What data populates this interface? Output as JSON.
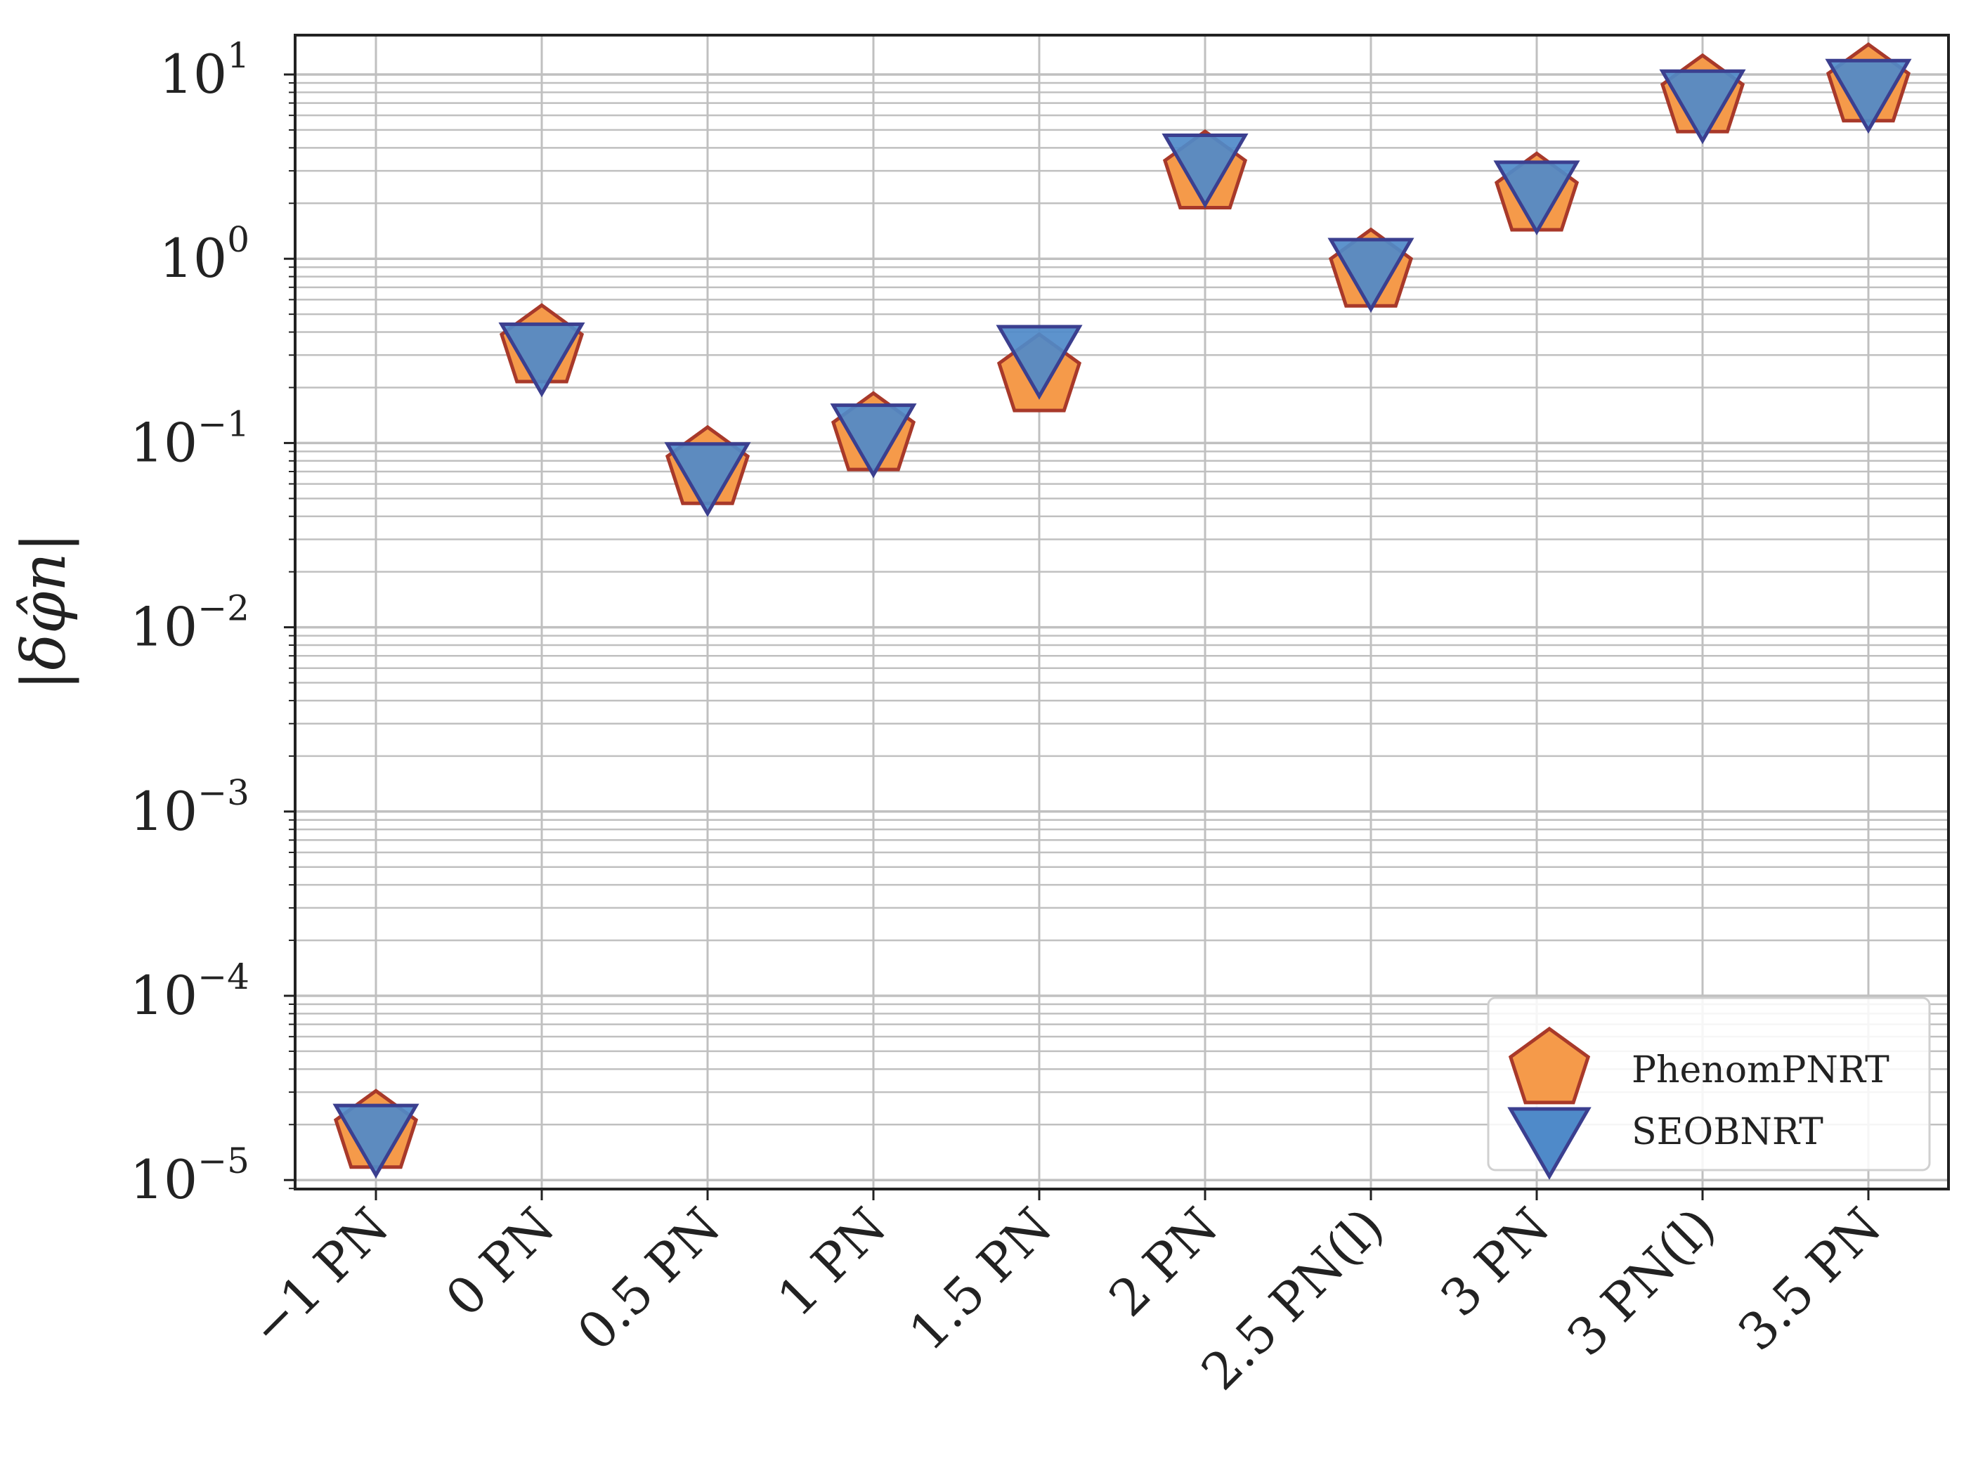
{
  "chart_data": {
    "type": "scatter",
    "categories": [
      "−1 PN",
      "0 PN",
      "0.5 PN",
      "1 PN",
      "1.5 PN",
      "2 PN",
      "2.5 PN(l)",
      "3 PN",
      "3 PN(l)",
      "3.5 PN"
    ],
    "yscale": "log",
    "ylim": [
      1e-05,
      15
    ],
    "ylabel": "|δφ̂n|",
    "xlabel": "",
    "y_ticks": [
      {
        "base": "10",
        "exp": "1"
      },
      {
        "base": "10",
        "exp": "0"
      },
      {
        "base": "10",
        "exp": "−1"
      },
      {
        "base": "10",
        "exp": "−2"
      },
      {
        "base": "10",
        "exp": "−3"
      },
      {
        "base": "10",
        "exp": "−4"
      },
      {
        "base": "10",
        "exp": "−5"
      }
    ],
    "y_tick_values": [
      10,
      1,
      0.1,
      0.01,
      0.001,
      0.0001,
      1e-05
    ],
    "grid": true,
    "legend_position": "lower-right",
    "series": [
      {
        "name": "PhenomPNRT",
        "marker": "pentagon",
        "color": "#f59a4a",
        "edge_color": "#a8392a",
        "values": [
          1.8e-05,
          0.33,
          0.072,
          0.11,
          0.23,
          2.9,
          0.85,
          2.2,
          7.5,
          8.6
        ]
      },
      {
        "name": "SEOBNRT",
        "marker": "triangle-down",
        "color": "#4f8ac9",
        "edge_color": "#3b3f8f",
        "values": [
          1.9e-05,
          0.33,
          0.074,
          0.12,
          0.32,
          3.5,
          0.95,
          2.5,
          7.8,
          8.9
        ]
      }
    ]
  }
}
